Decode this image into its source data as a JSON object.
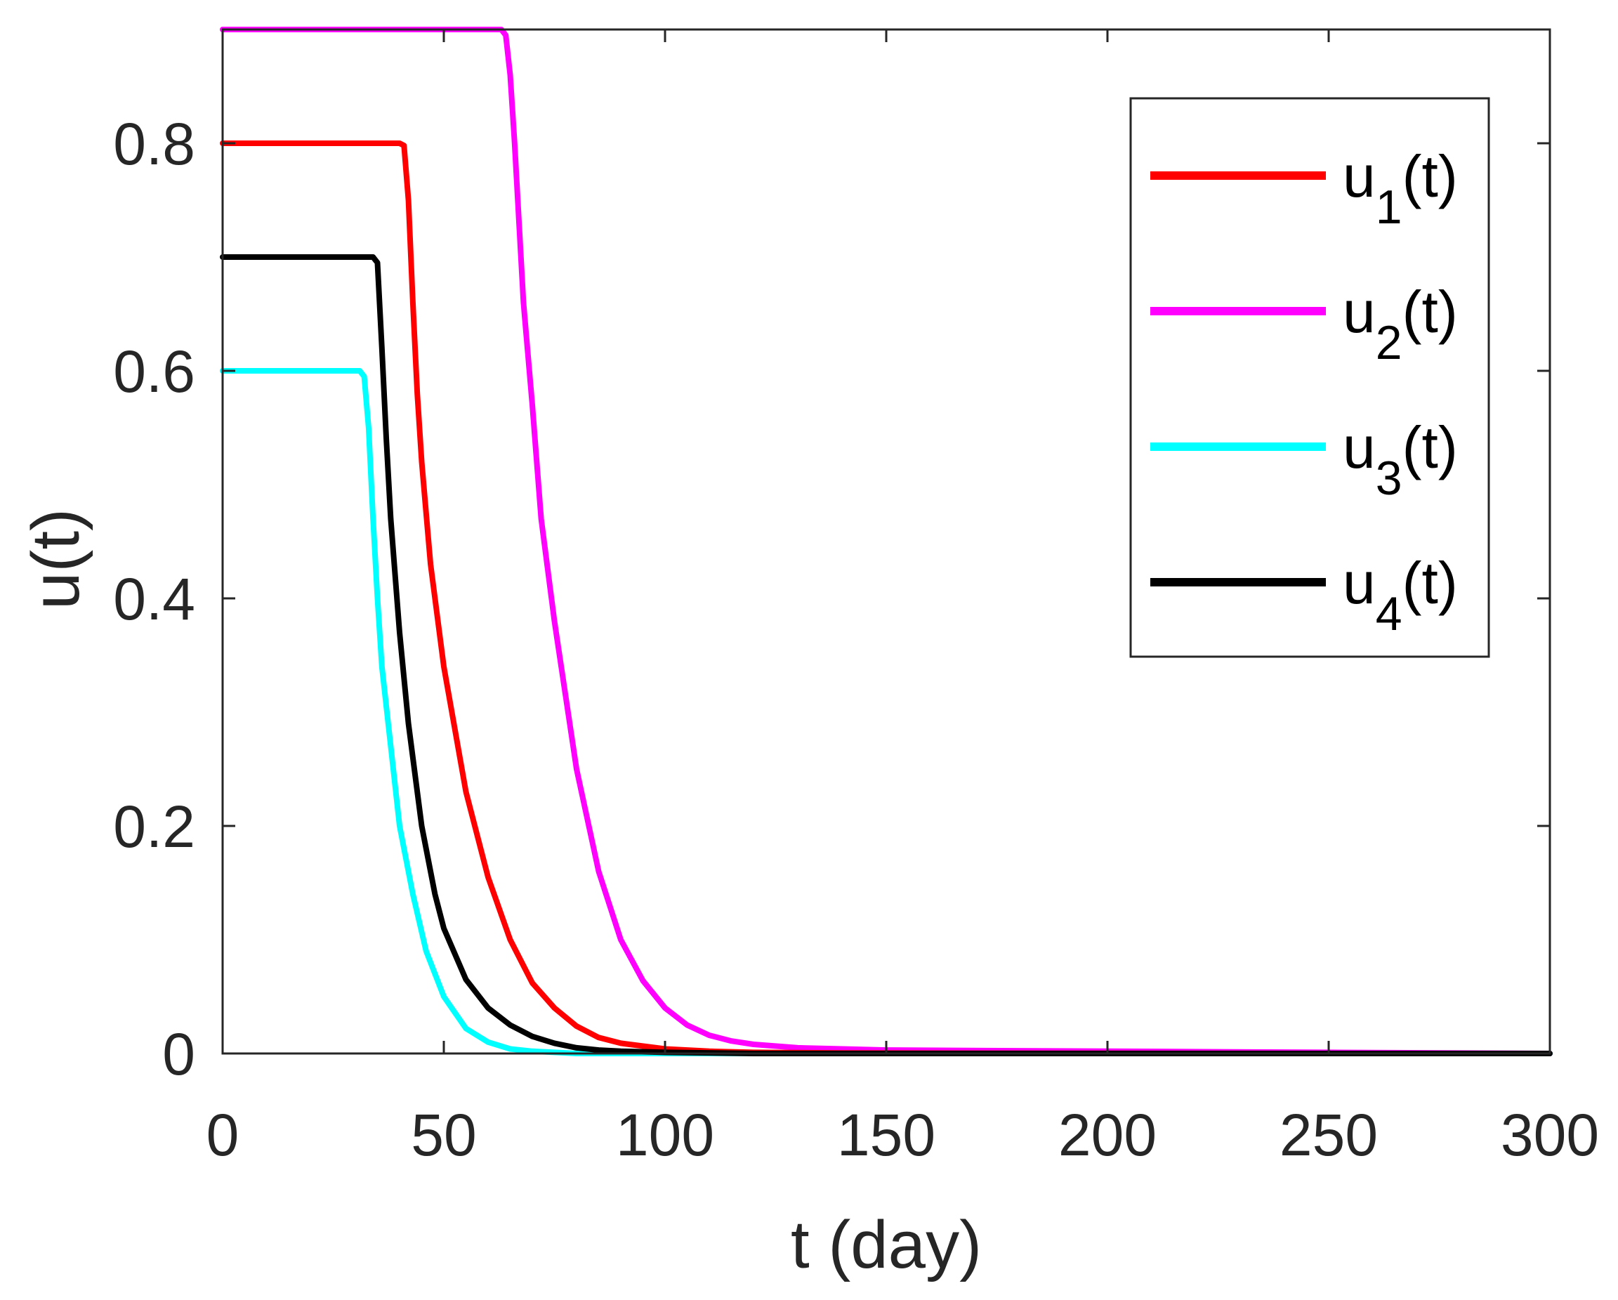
{
  "chart_data": {
    "type": "line",
    "title": "",
    "xlabel": "t (day)",
    "ylabel": "u(t)",
    "xlim": [
      0,
      300
    ],
    "ylim": [
      0,
      0.9
    ],
    "xticks": [
      0,
      50,
      100,
      150,
      200,
      250,
      300
    ],
    "yticks": [
      0,
      0.2,
      0.4,
      0.6,
      0.8
    ],
    "xtick_labels": [
      "0",
      "50",
      "100",
      "150",
      "200",
      "250",
      "300"
    ],
    "ytick_labels": [
      "0",
      "0.2",
      "0.4",
      "0.6",
      "0.8"
    ],
    "grid": false,
    "legend_position": "top-right",
    "series": [
      {
        "name": "u1(t)",
        "label_base": "u",
        "label_sub": "1",
        "label_suffix": "(t)",
        "color": "#ff0000",
        "x": [
          0,
          40,
          41,
          42,
          43,
          44,
          45,
          47,
          50,
          55,
          60,
          65,
          70,
          75,
          80,
          85,
          90,
          100,
          110,
          120,
          140,
          160,
          200,
          250,
          300
        ],
        "y": [
          0.8,
          0.8,
          0.798,
          0.75,
          0.66,
          0.58,
          0.52,
          0.43,
          0.34,
          0.23,
          0.155,
          0.1,
          0.062,
          0.04,
          0.024,
          0.014,
          0.009,
          0.004,
          0.002,
          0.001,
          0.0005,
          0.0003,
          0.0001,
          0.0,
          0.0
        ]
      },
      {
        "name": "u2(t)",
        "label_base": "u",
        "label_sub": "2",
        "label_suffix": "(t)",
        "color": "#ff00ff",
        "x": [
          0,
          63,
          64,
          65,
          66,
          67,
          68,
          70,
          72,
          75,
          80,
          85,
          90,
          95,
          100,
          105,
          110,
          115,
          120,
          130,
          140,
          150,
          200,
          250,
          300
        ],
        "y": [
          0.9,
          0.9,
          0.895,
          0.86,
          0.8,
          0.73,
          0.66,
          0.57,
          0.47,
          0.38,
          0.25,
          0.16,
          0.1,
          0.064,
          0.04,
          0.025,
          0.016,
          0.011,
          0.008,
          0.005,
          0.004,
          0.003,
          0.002,
          0.001,
          0.0
        ]
      },
      {
        "name": "u3(t)",
        "label_base": "u",
        "label_sub": "3",
        "label_suffix": "(t)",
        "color": "#00ffff",
        "x": [
          0,
          31,
          32,
          33,
          34,
          35,
          36,
          38,
          40,
          43,
          46,
          50,
          55,
          60,
          65,
          70,
          75,
          80,
          90,
          100,
          300
        ],
        "y": [
          0.6,
          0.6,
          0.595,
          0.55,
          0.47,
          0.4,
          0.34,
          0.27,
          0.2,
          0.14,
          0.09,
          0.05,
          0.022,
          0.01,
          0.004,
          0.002,
          0.001,
          0.0,
          0.0,
          0.0,
          0.0
        ]
      },
      {
        "name": "u4(t)",
        "label_base": "u",
        "label_sub": "4",
        "label_suffix": "(t)",
        "color": "#000000",
        "x": [
          0,
          34,
          35,
          36,
          37,
          38,
          40,
          42,
          45,
          48,
          50,
          55,
          60,
          65,
          70,
          75,
          80,
          85,
          90,
          100,
          120,
          300
        ],
        "y": [
          0.7,
          0.7,
          0.695,
          0.62,
          0.54,
          0.47,
          0.37,
          0.29,
          0.2,
          0.14,
          0.11,
          0.065,
          0.04,
          0.025,
          0.015,
          0.009,
          0.005,
          0.003,
          0.002,
          0.001,
          0.0,
          0.0
        ]
      }
    ]
  }
}
